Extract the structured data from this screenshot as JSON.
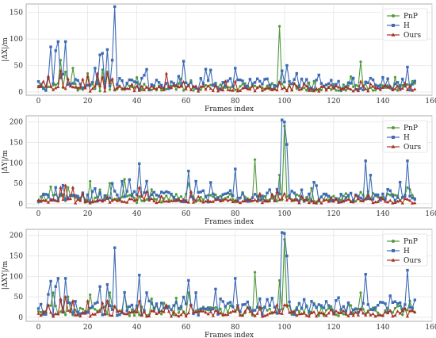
{
  "colors": {
    "PnP": "#4f9a3a",
    "H": "#3d6bb5",
    "Ours": "#a83224"
  },
  "chart_data": [
    {
      "type": "line",
      "xlabel": "Frames index",
      "ylabel": "|ΔX|/m",
      "xlim": [
        -5,
        160
      ],
      "ylim": [
        -6,
        166
      ],
      "xticks": [
        0,
        20,
        40,
        60,
        80,
        100,
        120,
        140,
        160
      ],
      "yticks": [
        0,
        50,
        100,
        150
      ],
      "grid": true,
      "legend": "top-right",
      "spikes": {
        "PnP": [
          [
            9,
            60
          ],
          [
            11,
            38
          ],
          [
            14,
            45
          ],
          [
            20,
            35
          ],
          [
            24,
            30
          ],
          [
            26,
            42
          ],
          [
            28,
            38
          ],
          [
            98,
            124
          ],
          [
            131,
            57
          ]
        ],
        "H": [
          [
            5,
            85
          ],
          [
            7,
            78
          ],
          [
            8,
            95
          ],
          [
            11,
            95
          ],
          [
            23,
            45
          ],
          [
            25,
            70
          ],
          [
            26,
            73
          ],
          [
            28,
            80
          ],
          [
            30,
            60
          ],
          [
            31,
            161
          ],
          [
            59,
            58
          ],
          [
            80,
            45
          ],
          [
            99,
            40
          ],
          [
            101,
            50
          ],
          [
            105,
            35
          ],
          [
            150,
            47
          ]
        ],
        "Ours": [
          [
            2,
            20
          ],
          [
            4,
            30
          ],
          [
            9,
            40
          ],
          [
            12,
            25
          ],
          [
            20,
            30
          ],
          [
            24,
            35
          ],
          [
            26,
            28
          ],
          [
            28,
            35
          ],
          [
            30,
            25
          ],
          [
            52,
            35
          ],
          [
            80,
            20
          ],
          [
            98,
            18
          ],
          [
            131,
            20
          ]
        ]
      },
      "series": [
        {
          "name": "PnP",
          "marker": "circle",
          "base": 9
        },
        {
          "name": "H",
          "marker": "square",
          "base": 15
        },
        {
          "name": "Ours",
          "marker": "triangle",
          "base": 7
        }
      ]
    },
    {
      "type": "line",
      "xlabel": "Frames index",
      "ylabel": "|ΔY|/m",
      "xlim": [
        -5,
        160
      ],
      "ylim": [
        -10,
        215
      ],
      "xticks": [
        0,
        20,
        40,
        60,
        80,
        100,
        120,
        140,
        160
      ],
      "yticks": [
        0,
        50,
        100,
        150,
        200
      ],
      "grid": true,
      "legend": "top-right",
      "spikes": {
        "PnP": [
          [
            12,
            40
          ],
          [
            21,
            55
          ],
          [
            29,
            50
          ],
          [
            35,
            60
          ],
          [
            46,
            35
          ],
          [
            61,
            50
          ],
          [
            88,
            108
          ],
          [
            98,
            70
          ],
          [
            100,
            190
          ],
          [
            134,
            30
          ],
          [
            151,
            35
          ]
        ],
        "H": [
          [
            7,
            40
          ],
          [
            10,
            45
          ],
          [
            30,
            50
          ],
          [
            34,
            55
          ],
          [
            41,
            98
          ],
          [
            44,
            55
          ],
          [
            61,
            80
          ],
          [
            64,
            55
          ],
          [
            80,
            85
          ],
          [
            99,
            205
          ],
          [
            100,
            200
          ],
          [
            101,
            145
          ],
          [
            133,
            105
          ],
          [
            135,
            70
          ],
          [
            150,
            105
          ]
        ],
        "Ours": [
          [
            9,
            40
          ],
          [
            11,
            45
          ],
          [
            14,
            40
          ],
          [
            18,
            25
          ],
          [
            41,
            40
          ],
          [
            44,
            30
          ],
          [
            62,
            30
          ],
          [
            90,
            25
          ],
          [
            97,
            30
          ],
          [
            100,
            25
          ],
          [
            134,
            20
          ]
        ]
      },
      "series": [
        {
          "name": "PnP",
          "marker": "circle",
          "base": 14
        },
        {
          "name": "H",
          "marker": "square",
          "base": 18
        },
        {
          "name": "Ours",
          "marker": "triangle",
          "base": 7
        }
      ]
    },
    {
      "type": "line",
      "xlabel": "Frames index",
      "ylabel": "|ΔXY|/m",
      "xlim": [
        -5,
        160
      ],
      "ylim": [
        -10,
        215
      ],
      "xticks": [
        0,
        20,
        40,
        60,
        80,
        100,
        120,
        140,
        160
      ],
      "yticks": [
        0,
        50,
        100,
        150,
        200
      ],
      "grid": true,
      "legend": "top-right",
      "spikes": {
        "PnP": [
          [
            6,
            60
          ],
          [
            12,
            50
          ],
          [
            21,
            55
          ],
          [
            29,
            60
          ],
          [
            35,
            60
          ],
          [
            46,
            45
          ],
          [
            61,
            60
          ],
          [
            88,
            110
          ],
          [
            98,
            90
          ],
          [
            100,
            190
          ],
          [
            131,
            60
          ],
          [
            151,
            40
          ]
        ],
        "H": [
          [
            5,
            88
          ],
          [
            7,
            75
          ],
          [
            8,
            95
          ],
          [
            11,
            95
          ],
          [
            25,
            75
          ],
          [
            28,
            80
          ],
          [
            31,
            170
          ],
          [
            41,
            103
          ],
          [
            44,
            60
          ],
          [
            61,
            90
          ],
          [
            64,
            60
          ],
          [
            80,
            95
          ],
          [
            99,
            207
          ],
          [
            100,
            205
          ],
          [
            101,
            150
          ],
          [
            133,
            105
          ],
          [
            150,
            115
          ]
        ],
        "Ours": [
          [
            4,
            30
          ],
          [
            9,
            45
          ],
          [
            11,
            50
          ],
          [
            14,
            40
          ],
          [
            20,
            40
          ],
          [
            26,
            35
          ],
          [
            28,
            40
          ],
          [
            41,
            40
          ],
          [
            52,
            30
          ],
          [
            62,
            30
          ],
          [
            90,
            25
          ],
          [
            97,
            30
          ],
          [
            100,
            30
          ],
          [
            131,
            20
          ]
        ]
      },
      "series": [
        {
          "name": "PnP",
          "marker": "circle",
          "base": 16
        },
        {
          "name": "H",
          "marker": "square",
          "base": 22
        },
        {
          "name": "Ours",
          "marker": "triangle",
          "base": 9
        }
      ]
    }
  ]
}
